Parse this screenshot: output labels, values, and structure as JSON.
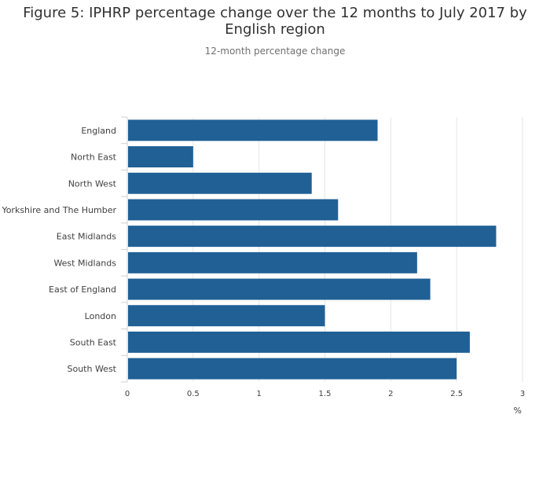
{
  "chart_data": {
    "type": "bar",
    "orientation": "horizontal",
    "title": "Figure 5: IPHRP percentage change over the 12 months to July 2017 by English region",
    "subtitle": "12-month percentage change",
    "categories": [
      "England",
      "North East",
      "North West",
      "Yorkshire and The Humber",
      "East Midlands",
      "West Midlands",
      "East of England",
      "London",
      "South East",
      "South West"
    ],
    "values": [
      1.9,
      0.5,
      1.4,
      1.6,
      2.8,
      2.2,
      2.3,
      1.5,
      2.6,
      2.5
    ],
    "xlabel": "%",
    "ylabel": "",
    "xlim": [
      0,
      3
    ],
    "xticks": [
      0,
      0.5,
      1,
      1.5,
      2,
      2.5,
      3
    ],
    "xtick_labels": [
      "0",
      "0.5",
      "1",
      "1.5",
      "2",
      "2.5",
      "3"
    ],
    "grid": true,
    "bar_color": "#206095",
    "grid_color": "#e6e6e6"
  }
}
